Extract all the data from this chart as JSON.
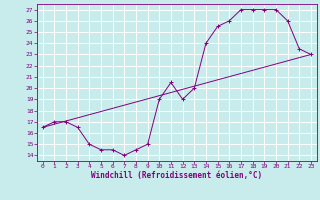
{
  "title": "",
  "xlabel": "Windchill (Refroidissement éolien,°C)",
  "bg_color": "#c8ecec",
  "line_color": "#800080",
  "grid_color": "#ffffff",
  "xlim": [
    -0.5,
    23.5
  ],
  "ylim": [
    13.5,
    27.5
  ],
  "xticks": [
    0,
    1,
    2,
    3,
    4,
    5,
    6,
    7,
    8,
    9,
    10,
    11,
    12,
    13,
    14,
    15,
    16,
    17,
    18,
    19,
    20,
    21,
    22,
    23
  ],
  "yticks": [
    14,
    15,
    16,
    17,
    18,
    19,
    20,
    21,
    22,
    23,
    24,
    25,
    26,
    27
  ],
  "curve1_x": [
    0,
    1,
    2,
    3,
    4,
    5,
    6,
    7,
    8,
    9,
    10,
    11,
    12,
    13,
    14,
    15,
    16,
    17,
    18,
    19,
    20,
    21,
    22,
    23
  ],
  "curve1_y": [
    16.5,
    17.0,
    17.0,
    16.5,
    15.0,
    14.5,
    14.5,
    14.0,
    14.5,
    15.0,
    19.0,
    20.5,
    19.0,
    20.0,
    24.0,
    25.5,
    26.0,
    27.0,
    27.0,
    27.0,
    27.0,
    26.0,
    23.5,
    23.0
  ],
  "curve2_x": [
    0,
    23
  ],
  "curve2_y": [
    16.5,
    23.0
  ],
  "marker": "+"
}
